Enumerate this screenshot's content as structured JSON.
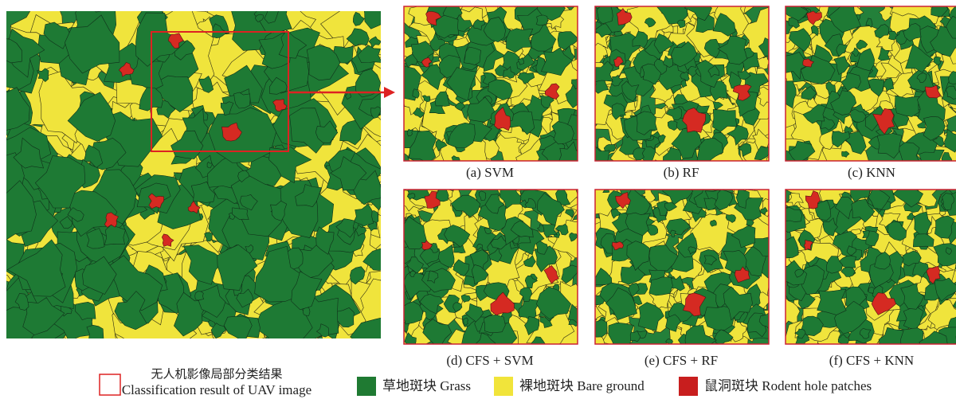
{
  "panels": [
    {
      "caption": "(a) SVM"
    },
    {
      "caption": "(b) RF"
    },
    {
      "caption": "(c) KNN"
    },
    {
      "caption": "(d) CFS + SVM"
    },
    {
      "caption": "(e) CFS + RF"
    },
    {
      "caption": "(f) CFS + KNN"
    }
  ],
  "legend": {
    "inset": {
      "zh": "无人机影像局部分类结果",
      "en": "Classification result of UAV image"
    },
    "items": [
      {
        "label": "草地斑块 Grass"
      },
      {
        "label": "裸地斑块 Bare ground"
      },
      {
        "label": "鼠洞斑块 Rodent hole patches"
      }
    ]
  }
}
